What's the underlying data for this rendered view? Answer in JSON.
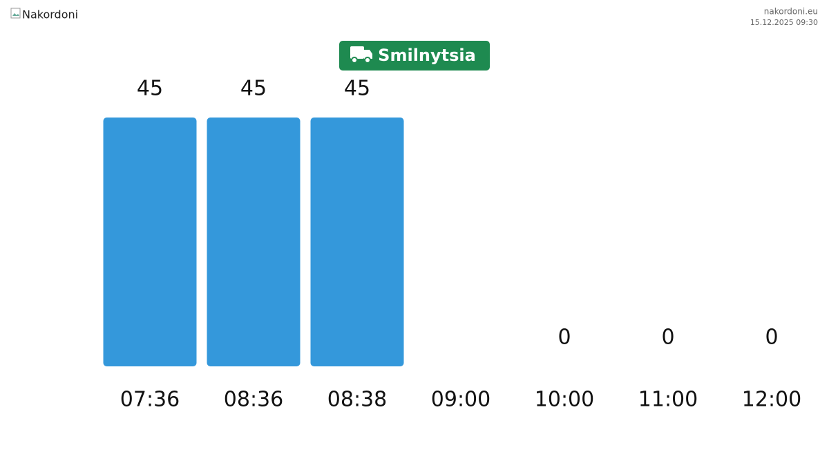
{
  "header": {
    "logo_alt": "Nakordoni",
    "site": "nakordoni.eu",
    "timestamp": "15.12.2025 09:30"
  },
  "chart_data": {
    "type": "bar",
    "title": "Smilnytsia",
    "categories": [
      "07:36",
      "08:36",
      "08:38",
      "09:00",
      "10:00",
      "11:00",
      "12:00"
    ],
    "values": [
      45,
      45,
      45,
      null,
      0,
      0,
      0
    ],
    "color": "#3498db",
    "badge_color": "#1e8a50"
  }
}
